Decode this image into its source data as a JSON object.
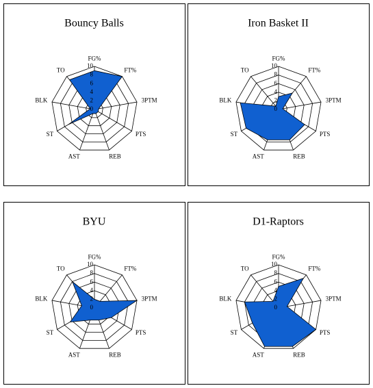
{
  "chart_data": [
    {
      "type": "radar",
      "title": "Bouncy Balls",
      "categories": [
        "FG%",
        "FT%",
        "3PTM",
        "PTS",
        "REB",
        "AST",
        "ST",
        "BLK",
        "TO"
      ],
      "values": [
        9,
        10,
        1,
        1,
        1,
        1,
        7,
        1,
        9
      ],
      "color": "#1060d0",
      "ylim": [
        0,
        10
      ],
      "yticks": [
        0,
        2,
        4,
        6,
        8,
        10
      ]
    },
    {
      "type": "radar",
      "title": "Iron Basket II",
      "categories": [
        "FG%",
        "FT%",
        "3PTM",
        "PTS",
        "REB",
        "AST",
        "ST",
        "BLK",
        "TO"
      ],
      "values": [
        3,
        5,
        1,
        7,
        7.5,
        7.5,
        8.7,
        9,
        1
      ],
      "color": "#1060d0",
      "ylim": [
        0,
        10
      ],
      "yticks": [
        0,
        2,
        4,
        6,
        8,
        10
      ]
    },
    {
      "type": "radar",
      "title": "BYU",
      "categories": [
        "FG%",
        "FT%",
        "3PTM",
        "PTS",
        "REB",
        "AST",
        "ST",
        "BLK",
        "TO"
      ],
      "values": [
        2,
        2,
        10,
        4.5,
        3,
        3,
        6.5,
        3,
        8
      ],
      "color": "#1060d0",
      "ylim": [
        0,
        10
      ],
      "yticks": [
        0,
        2,
        4,
        6,
        8,
        10
      ]
    },
    {
      "type": "radar",
      "title": "D1-Raptors",
      "categories": [
        "FG%",
        "FT%",
        "3PTM",
        "PTS",
        "REB",
        "AST",
        "ST",
        "BLK",
        "TO"
      ],
      "values": [
        5,
        9,
        2,
        10,
        9.5,
        9.5,
        7,
        8,
        2
      ],
      "color": "#1060d0",
      "ylim": [
        0,
        10
      ],
      "yticks": [
        0,
        2,
        4,
        6,
        8,
        10
      ]
    }
  ]
}
